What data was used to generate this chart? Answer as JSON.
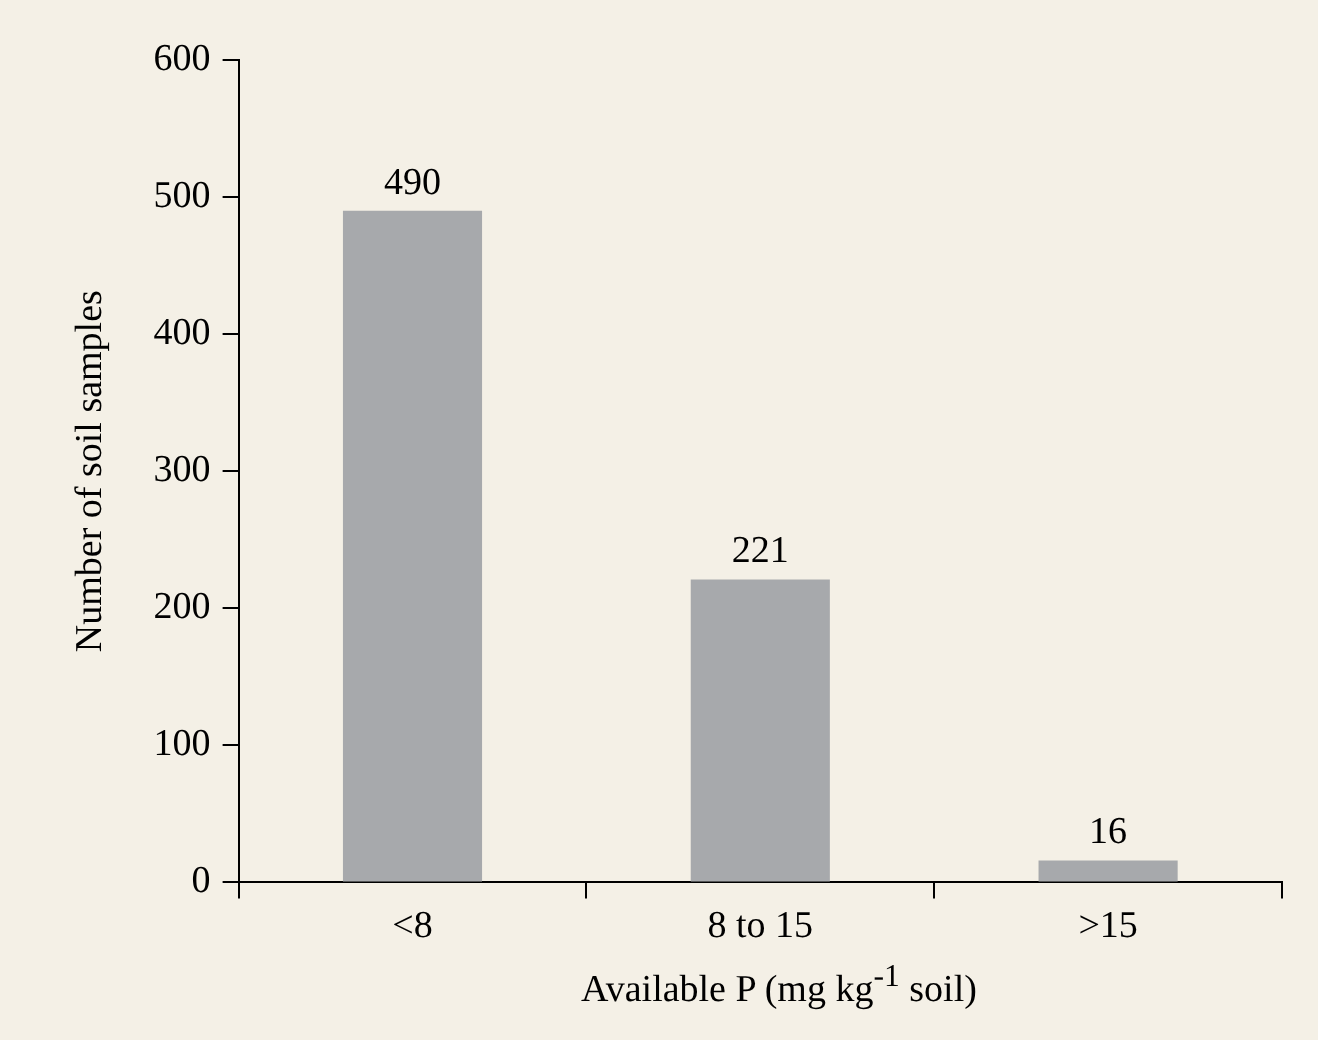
{
  "chart_data": {
    "type": "bar",
    "xlabel": "Available P (mg kg$^{-1}$ soil)",
    "ylabel": "Number of soil samples",
    "categories": [
      "<8",
      "8 to 15",
      ">15"
    ],
    "values": [
      490,
      221,
      16
    ],
    "color": "#a7a9ac",
    "ylim": [
      0,
      600
    ],
    "yticks": [
      0,
      100,
      200,
      300,
      400,
      500,
      600
    ],
    "grid": false,
    "data_labels": true
  }
}
